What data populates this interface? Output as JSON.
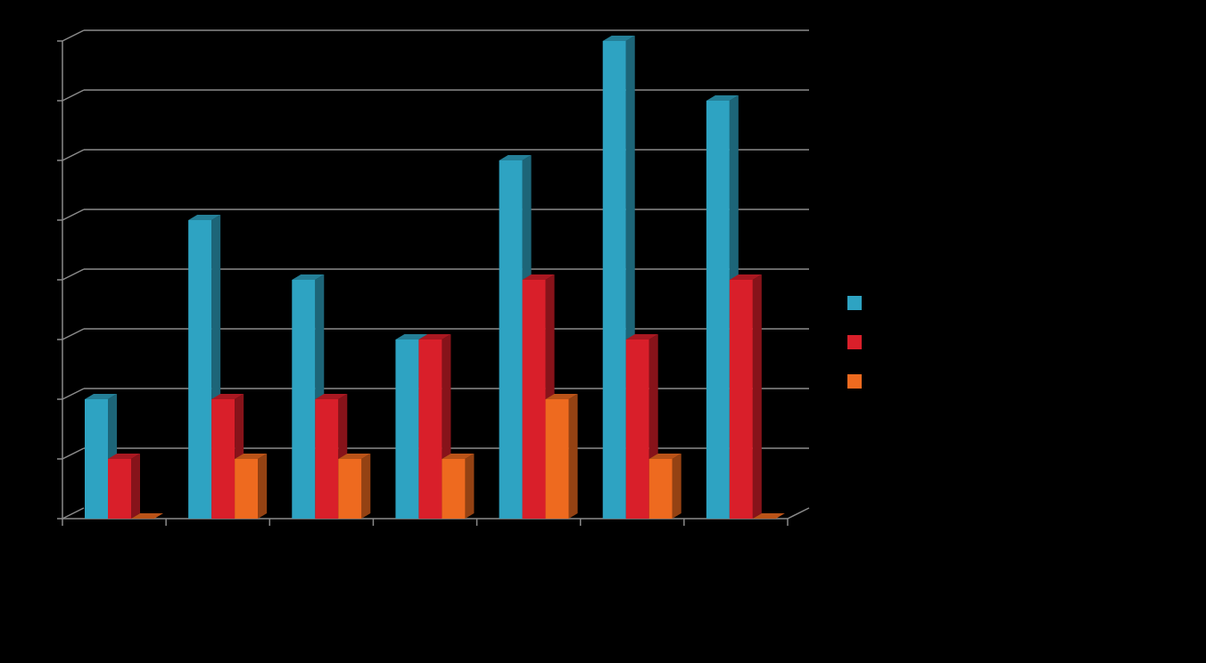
{
  "chart_data": {
    "type": "bar",
    "style": "3d-clustered-column",
    "title": "",
    "xlabel": "",
    "ylabel": "",
    "categories": [
      "",
      "",
      "",
      "",
      "",
      "",
      ""
    ],
    "ylim": [
      0,
      8
    ],
    "grid": true,
    "legend_position": "right",
    "series": [
      {
        "color": "#2EA3C2",
        "values": [
          2,
          5,
          4,
          3,
          6,
          8,
          7
        ]
      },
      {
        "color": "#D91F2A",
        "values": [
          1,
          2,
          2,
          3,
          4,
          3,
          4
        ]
      },
      {
        "color": "#EE6A1F",
        "values": [
          0,
          1,
          1,
          1,
          2,
          1,
          0
        ]
      }
    ]
  }
}
